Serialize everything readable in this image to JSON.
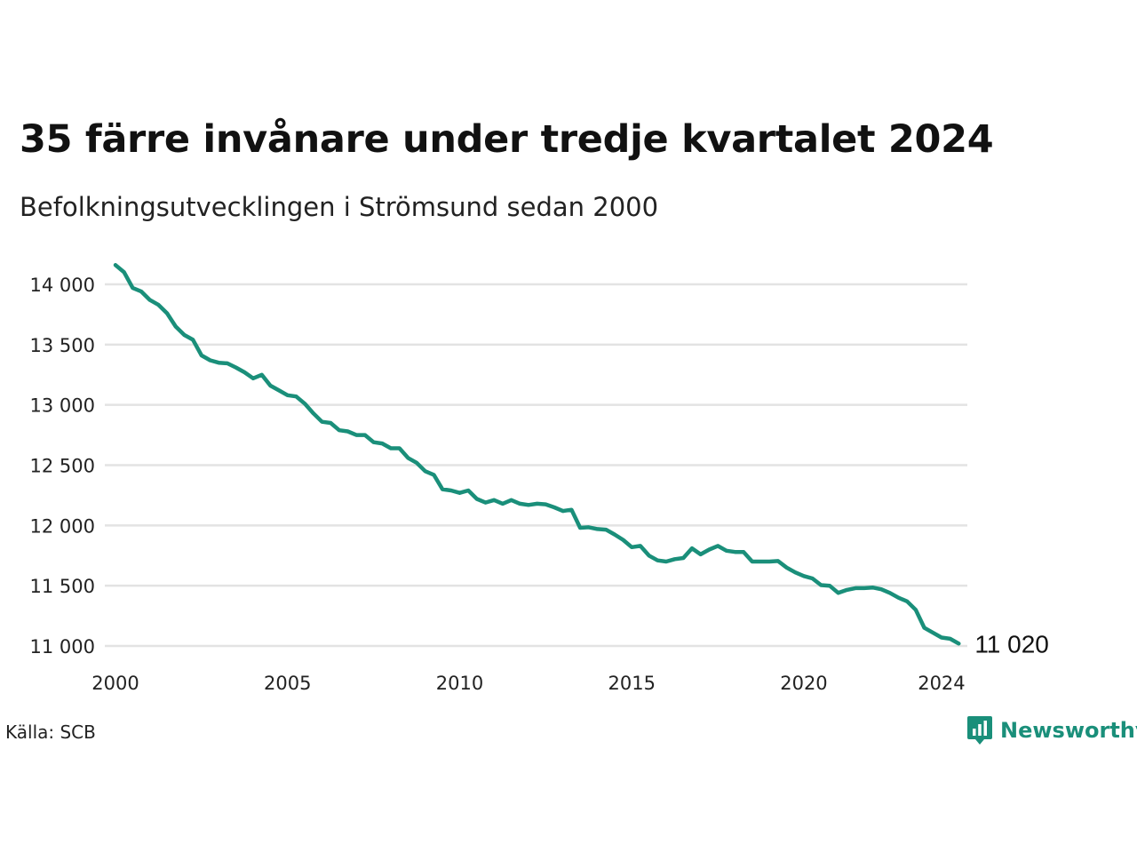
{
  "title": "35 färre invånare under tredje kvartalet 2024",
  "subtitle": "Befolkningsutvecklingen i Strömsund sedan 2000",
  "source": "Källa: SCB",
  "brand": {
    "name": "Newsworthy",
    "icon": "newsworthy-logo-icon",
    "color": "#1a8f7a"
  },
  "colors": {
    "line": "#1a8f7a",
    "grid": "#e3e3e3"
  },
  "chart_data": {
    "type": "line",
    "title": "35 färre invånare under tredje kvartalet 2024",
    "subtitle": "Befolkningsutvecklingen i Strömsund sedan 2000",
    "xlabel": "",
    "ylabel": "",
    "xlim": [
      2000,
      2024.75
    ],
    "ylim": [
      11000,
      14150
    ],
    "x_ticks": [
      {
        "value": 2000,
        "label": "2000"
      },
      {
        "value": 2005,
        "label": "2005"
      },
      {
        "value": 2010,
        "label": "2010"
      },
      {
        "value": 2015,
        "label": "2015"
      },
      {
        "value": 2020,
        "label": "2020"
      },
      {
        "value": 2024,
        "label": "2024"
      }
    ],
    "y_ticks": [
      {
        "value": 11000,
        "label": "11 000"
      },
      {
        "value": 11500,
        "label": "11 500"
      },
      {
        "value": 12000,
        "label": "12 000"
      },
      {
        "value": 12500,
        "label": "12 500"
      },
      {
        "value": 13000,
        "label": "13 000"
      },
      {
        "value": 13500,
        "label": "13 500"
      },
      {
        "value": 14000,
        "label": "14 000"
      }
    ],
    "grid": true,
    "end_label": "11 020",
    "series": [
      {
        "x_start": 2000,
        "step": 0.25,
        "values": [
          14160,
          14100,
          13970,
          13940,
          13870,
          13830,
          13760,
          13650,
          13580,
          13540,
          13410,
          13370,
          13350,
          13345,
          13310,
          13270,
          13220,
          13250,
          13160,
          13120,
          13080,
          13070,
          13010,
          12930,
          12860,
          12850,
          12790,
          12780,
          12750,
          12750,
          12690,
          12680,
          12640,
          12640,
          12560,
          12520,
          12450,
          12420,
          12300,
          12290,
          12270,
          12290,
          12220,
          12190,
          12210,
          12180,
          12210,
          12180,
          12170,
          12180,
          12175,
          12150,
          12120,
          12130,
          11980,
          11985,
          11970,
          11965,
          11925,
          11880,
          11820,
          11830,
          11750,
          11710,
          11700,
          11720,
          11730,
          11810,
          11760,
          11800,
          11830,
          11790,
          11780,
          11780,
          11700,
          11700,
          11700,
          11705,
          11650,
          11610,
          11580,
          11560,
          11505,
          11500,
          11440,
          11465,
          11480,
          11480,
          11485,
          11470,
          11440,
          11400,
          11370,
          11300,
          11150,
          11110,
          11070,
          11060,
          11020
        ]
      }
    ]
  }
}
